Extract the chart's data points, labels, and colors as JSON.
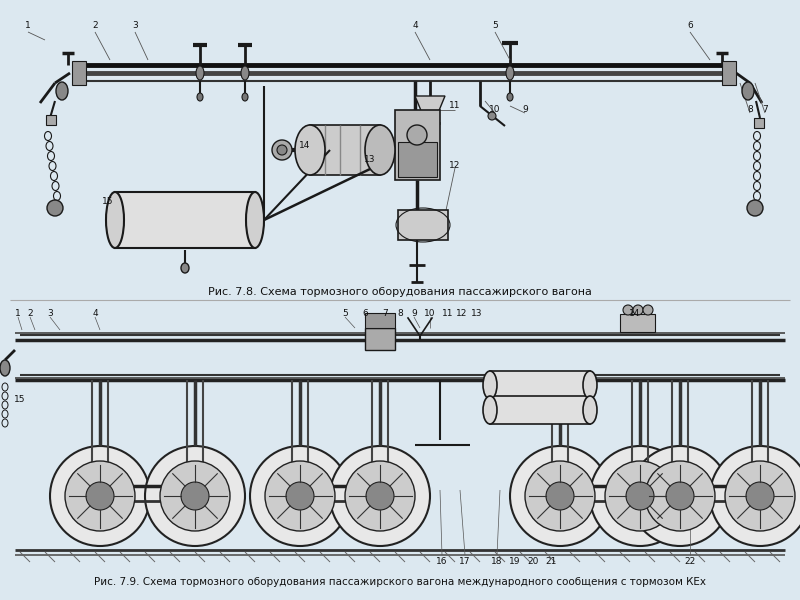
{
  "bg_color": "#dce8f0",
  "panel_color": "#dce8f0",
  "title1": "Рис. 7.8. Схема тормозного оборудования пассажирского вагона",
  "title2": "Рис. 7.9. Схема тормозного оборудования пассажирского вагона международного сообщения с тормозом КЕх",
  "title_fontsize": 8.0,
  "line_color": "#1a1a1a",
  "fg_color": "#222222",
  "pipe_color": "#111111",
  "fill_light": "#c8c8c8",
  "fill_mid": "#aaaaaa",
  "fill_dark": "#888888",
  "fill_white": "#eeeeee"
}
